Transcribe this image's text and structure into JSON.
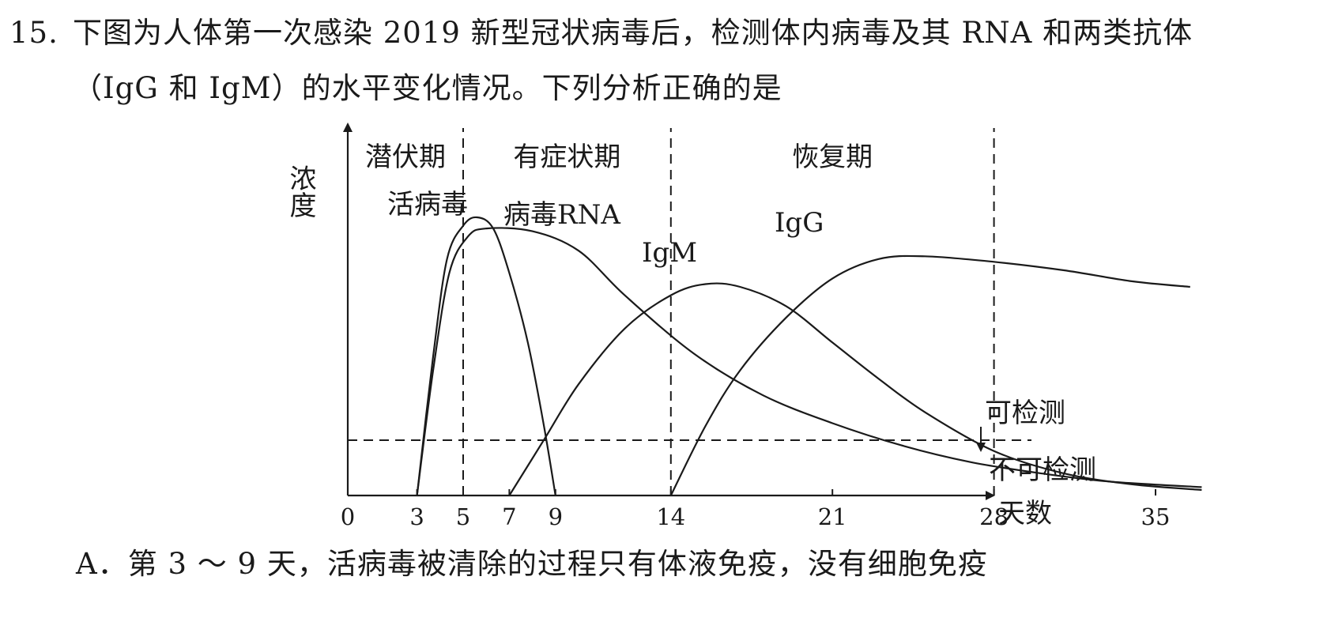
{
  "question": {
    "number": "15.",
    "line1": "下图为人体第一次感染 2019 新型冠状病毒后，检测体内病毒及其 RNA 和两类抗体",
    "line2": "（IgG 和 IgM）的水平变化情况。下列分析正确的是"
  },
  "chart_data": {
    "type": "line",
    "ylabel": "浓度",
    "xlabel": "天数",
    "x_ticks": [
      "0",
      "3",
      "5",
      "7",
      "9",
      "14",
      "21",
      "28",
      "35"
    ],
    "xlim": [
      0,
      37
    ],
    "phases": [
      {
        "label": "潜伏期",
        "start": 0,
        "end": 5
      },
      {
        "label": "有症状期",
        "start": 5,
        "end": 14
      },
      {
        "label": "恢复期",
        "start": 14,
        "end": 28
      }
    ],
    "detection_threshold": {
      "above_label": "可检测",
      "below_label": "不可检测"
    },
    "series": [
      {
        "name": "活病毒",
        "points": [
          [
            3,
            0
          ],
          [
            3.7,
            50
          ],
          [
            4.3,
            85
          ],
          [
            5,
            97
          ],
          [
            5.6,
            100
          ],
          [
            6.3,
            96
          ],
          [
            7,
            80
          ],
          [
            7.8,
            55
          ],
          [
            8.5,
            25
          ],
          [
            9,
            0
          ]
        ]
      },
      {
        "name": "病毒RNA",
        "points": [
          [
            3,
            0
          ],
          [
            3.7,
            45
          ],
          [
            4.4,
            80
          ],
          [
            5.2,
            93
          ],
          [
            6,
            96
          ],
          [
            8,
            95
          ],
          [
            10,
            88
          ],
          [
            12,
            72
          ],
          [
            15,
            51
          ],
          [
            18,
            36
          ],
          [
            21,
            26
          ],
          [
            24,
            18
          ],
          [
            27,
            12
          ],
          [
            30,
            8
          ],
          [
            33,
            5
          ],
          [
            37,
            3
          ]
        ]
      },
      {
        "name": "IgM",
        "points": [
          [
            7,
            0
          ],
          [
            8.5,
            20
          ],
          [
            10,
            40
          ],
          [
            12,
            60
          ],
          [
            14,
            72
          ],
          [
            15.5,
            76
          ],
          [
            17,
            75
          ],
          [
            19,
            68
          ],
          [
            21,
            55
          ],
          [
            23,
            42
          ],
          [
            25,
            30
          ],
          [
            28,
            16
          ],
          [
            31,
            8
          ],
          [
            34,
            4
          ],
          [
            37,
            2
          ]
        ]
      },
      {
        "name": "IgG",
        "points": [
          [
            14,
            0
          ],
          [
            15.5,
            25
          ],
          [
            17,
            45
          ],
          [
            19,
            64
          ],
          [
            21,
            78
          ],
          [
            23,
            85
          ],
          [
            25,
            86
          ],
          [
            28,
            84
          ],
          [
            31,
            81
          ],
          [
            34,
            77
          ],
          [
            36.5,
            75
          ]
        ]
      }
    ]
  },
  "options": {
    "a": "A．第 3 ～ 9 天，活病毒被清除的过程只有体液免疫，没有细胞免疫"
  }
}
